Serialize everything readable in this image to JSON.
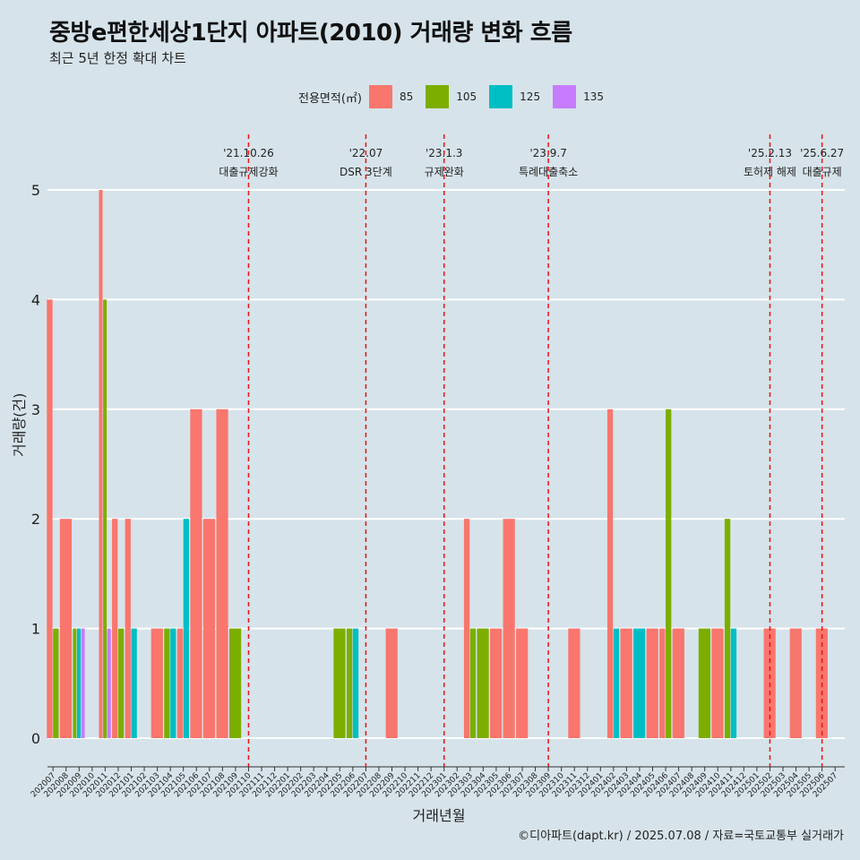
{
  "title": "중방e편한세상1단지 아파트(2010) 거래량 변화 흐름",
  "subtitle": "최근 5년 한정 확대 차트",
  "caption": "©디아파트(dapt.kr) / 2025.07.08 / 자료=국토교통부 실거래가",
  "legend": {
    "title": "전용면적(㎡)",
    "items": [
      {
        "label": "85",
        "color": "#f8766d"
      },
      {
        "label": "105",
        "color": "#7cae00"
      },
      {
        "label": "125",
        "color": "#00bfc4"
      },
      {
        "label": "135",
        "color": "#c77cff"
      }
    ]
  },
  "chart_data": {
    "type": "bar",
    "xlabel": "거래년월",
    "ylabel": "거래량(건)",
    "ylim": [
      0,
      5
    ],
    "yticks": [
      0,
      1,
      2,
      3,
      4,
      5
    ],
    "grid": true,
    "legend_position": "top",
    "categories": [
      "202007",
      "202008",
      "202009",
      "202010",
      "202011",
      "202012",
      "202101",
      "202102",
      "202103",
      "202104",
      "202105",
      "202106",
      "202107",
      "202108",
      "202109",
      "202110",
      "202111",
      "202112",
      "202201",
      "202202",
      "202203",
      "202204",
      "202205",
      "202206",
      "202207",
      "202208",
      "202209",
      "202210",
      "202211",
      "202212",
      "202301",
      "202302",
      "202303",
      "202304",
      "202305",
      "202306",
      "202307",
      "202308",
      "202309",
      "202310",
      "202311",
      "202312",
      "202401",
      "202402",
      "202403",
      "202404",
      "202405",
      "202406",
      "202407",
      "202408",
      "202409",
      "202410",
      "202411",
      "202412",
      "202501",
      "202502",
      "202503",
      "202504",
      "202505",
      "202506",
      "202507"
    ],
    "series": [
      {
        "name": "85",
        "color": "#f8766d",
        "values": [
          4,
          2,
          0,
          0,
          5,
          2,
          2,
          0,
          1,
          0,
          1,
          3,
          2,
          3,
          0,
          0,
          0,
          0,
          0,
          0,
          0,
          0,
          0,
          0,
          0,
          0,
          1,
          0,
          0,
          0,
          0,
          0,
          2,
          0,
          1,
          2,
          1,
          0,
          0,
          0,
          1,
          0,
          0,
          3,
          1,
          0,
          1,
          1,
          1,
          0,
          0,
          1,
          0,
          0,
          0,
          1,
          0,
          1,
          0,
          1,
          0
        ]
      },
      {
        "name": "105",
        "color": "#7cae00",
        "values": [
          1,
          0,
          1,
          0,
          4,
          1,
          0,
          0,
          0,
          1,
          0,
          0,
          0,
          0,
          1,
          0,
          0,
          0,
          0,
          0,
          0,
          0,
          1,
          1,
          0,
          0,
          0,
          0,
          0,
          0,
          0,
          0,
          1,
          1,
          0,
          0,
          0,
          0,
          0,
          0,
          0,
          0,
          0,
          0,
          0,
          0,
          0,
          3,
          0,
          0,
          1,
          0,
          2,
          0,
          0,
          0,
          0,
          0,
          0,
          0,
          0
        ]
      },
      {
        "name": "125",
        "color": "#00bfc4",
        "values": [
          0,
          0,
          1,
          0,
          0,
          0,
          1,
          0,
          0,
          1,
          2,
          0,
          0,
          0,
          0,
          0,
          0,
          0,
          0,
          0,
          0,
          0,
          0,
          1,
          0,
          0,
          0,
          0,
          0,
          0,
          0,
          0,
          0,
          0,
          0,
          0,
          0,
          0,
          0,
          0,
          0,
          0,
          0,
          1,
          0,
          1,
          0,
          0,
          0,
          0,
          0,
          0,
          1,
          0,
          0,
          0,
          0,
          0,
          0,
          0,
          0
        ]
      },
      {
        "name": "135",
        "color": "#c77cff",
        "values": [
          0,
          0,
          1,
          0,
          1,
          0,
          0,
          0,
          0,
          0,
          0,
          0,
          0,
          0,
          0,
          0,
          0,
          0,
          0,
          0,
          0,
          0,
          0,
          0,
          0,
          0,
          0,
          0,
          0,
          0,
          0,
          0,
          0,
          0,
          0,
          0,
          0,
          0,
          0,
          0,
          0,
          0,
          0,
          0,
          0,
          0,
          0,
          0,
          0,
          0,
          0,
          0,
          0,
          0,
          0,
          0,
          0,
          0,
          0,
          0,
          0
        ]
      }
    ],
    "annotations": [
      {
        "date": "'21.10.26",
        "label": "대출규제강화",
        "x": "202110"
      },
      {
        "date": "'22.07",
        "label": "DSR 3단계",
        "x": "202207"
      },
      {
        "date": "'23.1.3",
        "label": "규제완화",
        "x": "202301"
      },
      {
        "date": "'23.9.7",
        "label": "특례대출축소",
        "x": "202309"
      },
      {
        "date": "'25.2.13",
        "label": "토허제 해제",
        "x": "202502"
      },
      {
        "date": "'25.6.27",
        "label": "대출규제",
        "x": "202506"
      }
    ]
  }
}
